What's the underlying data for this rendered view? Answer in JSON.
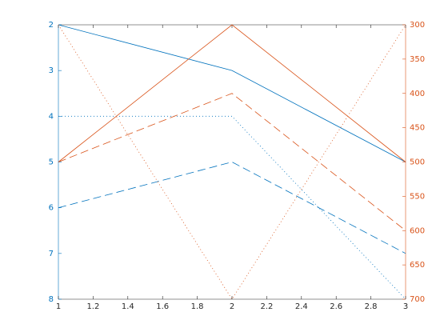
{
  "chart_data": {
    "type": "line",
    "x": [
      1,
      2,
      3
    ],
    "xlim": [
      1,
      3
    ],
    "xticks": [
      1,
      1.2,
      1.4,
      1.6,
      1.8,
      2,
      2.2,
      2.4,
      2.6,
      2.8,
      3
    ],
    "ylim": [
      2,
      8
    ],
    "yticks": [
      2,
      3,
      4,
      5,
      6,
      7,
      8
    ],
    "y_direction": "reverse",
    "y_color": "#0072bd",
    "y2lim": [
      300,
      700
    ],
    "y2ticks": [
      300,
      350,
      400,
      450,
      500,
      550,
      600,
      650,
      700
    ],
    "y2_direction": "reverse",
    "y2_color": "#d95319",
    "grid": false,
    "series": [
      {
        "color": "#0072bd",
        "style": "solid",
        "values": [
          2,
          3,
          5
        ]
      },
      {
        "color": "#0072bd",
        "style": "dashed",
        "values": [
          6,
          5,
          7
        ]
      },
      {
        "color": "#0072bd",
        "style": "dotted",
        "values": [
          4,
          4,
          8
        ]
      },
      {
        "color": "#d95319",
        "style": "solid",
        "axis": "y2",
        "values": [
          500,
          300,
          500
        ]
      },
      {
        "color": "#d95319",
        "style": "dashed",
        "axis": "y2",
        "values": [
          500,
          400,
          600
        ]
      },
      {
        "color": "#d95319",
        "style": "dotted",
        "axis": "y2",
        "values": [
          300,
          700,
          300
        ]
      }
    ]
  }
}
